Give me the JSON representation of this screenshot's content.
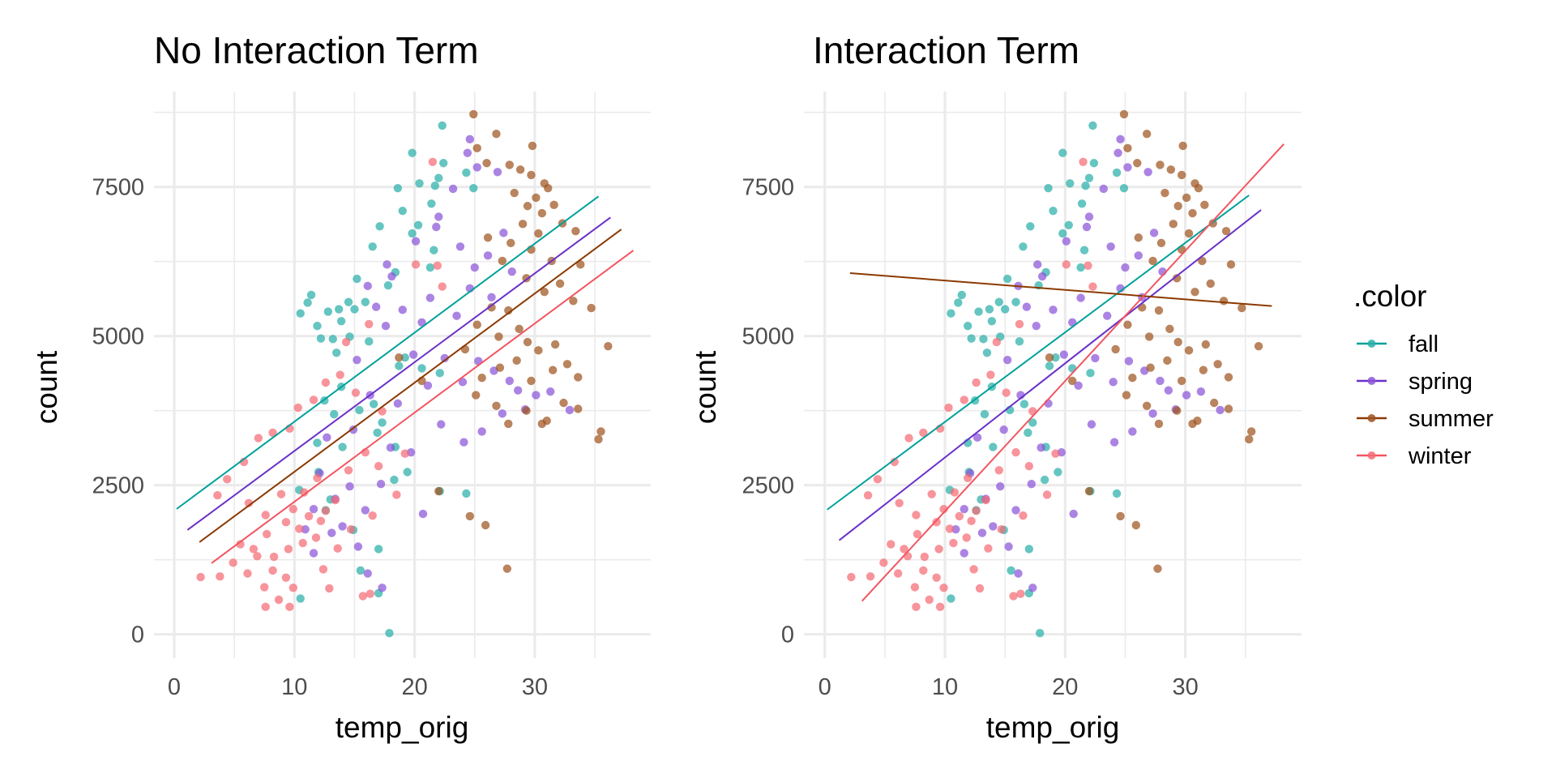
{
  "colors": {
    "fall": "#00A19A",
    "spring": "#6A30C8",
    "summer": "#8B3A00",
    "winter": "#F25560",
    "fall_point": "#2AAFA9",
    "spring_point": "#8A55D8",
    "summer_point": "#9E5420",
    "winter_point": "#F56B74"
  },
  "legend": {
    "title": ".color",
    "placement": "right",
    "items": [
      {
        "key": "fall",
        "label": "fall"
      },
      {
        "key": "spring",
        "label": "spring"
      },
      {
        "key": "summer",
        "label": "summer"
      },
      {
        "key": "winter",
        "label": "winter"
      }
    ]
  },
  "chart_data": [
    {
      "type": "scatter",
      "title": "No Interaction Term",
      "xlabel": "temp_orig",
      "ylabel": "count",
      "xlim": [
        -1.5,
        39.3
      ],
      "ylim": [
        -400,
        9100
      ],
      "xticks": [
        "0",
        "10",
        "20",
        "30"
      ],
      "xtick_values": [
        0,
        10,
        20,
        30
      ],
      "yticks": [
        "0",
        "2500",
        "5000",
        "7500"
      ],
      "ytick_values": [
        0,
        2500,
        5000,
        7500
      ],
      "grid": true,
      "fit_lines": [
        {
          "series": "fall",
          "x": [
            0.2,
            35.3
          ],
          "y": [
            2102,
            7342
          ]
        },
        {
          "series": "spring",
          "x": [
            1.1,
            36.3
          ],
          "y": [
            1749,
            6989
          ]
        },
        {
          "series": "summer",
          "x": [
            2.1,
            37.2
          ],
          "y": [
            1545,
            6789
          ]
        },
        {
          "series": "winter",
          "x": [
            3.1,
            38.2
          ],
          "y": [
            1192,
            6436
          ]
        }
      ]
    },
    {
      "type": "scatter",
      "title": "Interaction Term",
      "xlabel": "temp_orig",
      "ylabel": "count",
      "xlim": [
        -1.5,
        39.3
      ],
      "ylim": [
        -400,
        9100
      ],
      "xticks": [
        "0",
        "10",
        "20",
        "30"
      ],
      "xtick_values": [
        0,
        10,
        20,
        30
      ],
      "yticks": [
        "0",
        "2500",
        "5000",
        "7500"
      ],
      "ytick_values": [
        0,
        2500,
        5000,
        7500
      ],
      "grid": true,
      "fit_lines": [
        {
          "series": "fall",
          "x": [
            0.2,
            35.3
          ],
          "y": [
            2090,
            7360
          ]
        },
        {
          "series": "spring",
          "x": [
            1.2,
            36.3
          ],
          "y": [
            1576,
            7115
          ]
        },
        {
          "series": "summer",
          "x": [
            2.1,
            37.2
          ],
          "y": [
            6056,
            5503
          ]
        },
        {
          "series": "winter",
          "x": [
            3.1,
            38.2
          ],
          "y": [
            557,
            8220
          ]
        }
      ]
    }
  ],
  "points": {
    "fall": [
      [
        17.9,
        20
      ],
      [
        22.3,
        8530
      ],
      [
        19.8,
        8070
      ],
      [
        20.4,
        7560
      ],
      [
        21.7,
        7520
      ],
      [
        18.6,
        7480
      ],
      [
        19.0,
        7100
      ],
      [
        21.4,
        7220
      ],
      [
        22.0,
        7650
      ],
      [
        22.4,
        7900
      ],
      [
        24.3,
        7740
      ],
      [
        24.9,
        7480
      ],
      [
        16.5,
        6500
      ],
      [
        17.1,
        6840
      ],
      [
        19.8,
        6720
      ],
      [
        20.3,
        6860
      ],
      [
        21.6,
        6440
      ],
      [
        21.3,
        6150
      ],
      [
        18.4,
        6070
      ],
      [
        17.8,
        5850
      ],
      [
        15.2,
        5960
      ],
      [
        14.5,
        5570
      ],
      [
        13.9,
        5250
      ],
      [
        13.7,
        5450
      ],
      [
        12.8,
        5410
      ],
      [
        11.9,
        5170
      ],
      [
        11.1,
        5560
      ],
      [
        11.4,
        5690
      ],
      [
        10.5,
        5380
      ],
      [
        12.2,
        4960
      ],
      [
        13.2,
        4950
      ],
      [
        13.5,
        4720
      ],
      [
        15.0,
        5450
      ],
      [
        15.9,
        5570
      ],
      [
        14.6,
        4990
      ],
      [
        16.2,
        4910
      ],
      [
        18.7,
        4500
      ],
      [
        19.2,
        4640
      ],
      [
        20.6,
        4460
      ],
      [
        22.1,
        4380
      ],
      [
        12.5,
        3920
      ],
      [
        13.3,
        3690
      ],
      [
        15.4,
        3760
      ],
      [
        16.6,
        3860
      ],
      [
        17.3,
        3550
      ],
      [
        18.4,
        3140
      ],
      [
        19.4,
        2720
      ],
      [
        18.3,
        2590
      ],
      [
        16.9,
        3380
      ],
      [
        14.0,
        3140
      ],
      [
        12.0,
        2720
      ],
      [
        10.4,
        2420
      ],
      [
        12.6,
        2080
      ],
      [
        14.9,
        1750
      ],
      [
        17.0,
        1430
      ],
      [
        22.1,
        2400
      ],
      [
        24.3,
        2360
      ],
      [
        10.5,
        600
      ],
      [
        15.5,
        1070
      ],
      [
        17.0,
        690
      ],
      [
        13.0,
        2260
      ],
      [
        11.9,
        3210
      ],
      [
        13.9,
        4150
      ]
    ],
    "spring": [
      [
        24.6,
        8300
      ],
      [
        24.4,
        8070
      ],
      [
        23.2,
        7470
      ],
      [
        22.0,
        7000
      ],
      [
        20.1,
        6590
      ],
      [
        21.8,
        6830
      ],
      [
        23.8,
        6500
      ],
      [
        25.0,
        6150
      ],
      [
        26.1,
        6350
      ],
      [
        27.4,
        6730
      ],
      [
        28.1,
        6080
      ],
      [
        26.4,
        5650
      ],
      [
        24.6,
        5800
      ],
      [
        21.3,
        5640
      ],
      [
        20.6,
        5230
      ],
      [
        19.0,
        5440
      ],
      [
        18.1,
        6000
      ],
      [
        17.7,
        6200
      ],
      [
        16.1,
        5840
      ],
      [
        16.8,
        5490
      ],
      [
        17.6,
        5170
      ],
      [
        19.9,
        4690
      ],
      [
        21.1,
        4170
      ],
      [
        22.5,
        4630
      ],
      [
        24.0,
        4230
      ],
      [
        25.3,
        4580
      ],
      [
        26.6,
        4420
      ],
      [
        27.9,
        4250
      ],
      [
        28.6,
        4090
      ],
      [
        30.1,
        4010
      ],
      [
        31.3,
        4070
      ],
      [
        32.9,
        3760
      ],
      [
        29.2,
        3770
      ],
      [
        27.3,
        3700
      ],
      [
        25.6,
        3400
      ],
      [
        24.1,
        3220
      ],
      [
        22.2,
        3520
      ],
      [
        19.7,
        3050
      ],
      [
        18.0,
        3130
      ],
      [
        17.2,
        2520
      ],
      [
        15.9,
        2080
      ],
      [
        14.6,
        2480
      ],
      [
        13.4,
        2270
      ],
      [
        12.1,
        2700
      ],
      [
        11.6,
        2100
      ],
      [
        10.9,
        1760
      ],
      [
        13.1,
        1700
      ],
      [
        14.0,
        1810
      ],
      [
        15.3,
        1470
      ],
      [
        20.7,
        2020
      ],
      [
        17.3,
        780
      ],
      [
        16.1,
        1020
      ],
      [
        11.6,
        1360
      ],
      [
        12.7,
        3300
      ],
      [
        14.9,
        3430
      ],
      [
        16.3,
        4010
      ],
      [
        15.2,
        4600
      ],
      [
        18.6,
        3870
      ],
      [
        23.5,
        5340
      ],
      [
        25.2,
        7830
      ],
      [
        26.9,
        7750
      ]
    ],
    "summer": [
      [
        24.9,
        8720
      ],
      [
        26.8,
        8390
      ],
      [
        29.8,
        8190
      ],
      [
        25.2,
        8150
      ],
      [
        26.0,
        7900
      ],
      [
        27.9,
        7870
      ],
      [
        28.8,
        7790
      ],
      [
        29.7,
        7700
      ],
      [
        30.8,
        7560
      ],
      [
        31.1,
        7480
      ],
      [
        28.3,
        7400
      ],
      [
        29.4,
        7180
      ],
      [
        30.1,
        7320
      ],
      [
        30.6,
        7060
      ],
      [
        31.6,
        7200
      ],
      [
        32.3,
        6890
      ],
      [
        33.4,
        6760
      ],
      [
        29.0,
        6880
      ],
      [
        30.3,
        6720
      ],
      [
        28.0,
        6560
      ],
      [
        29.7,
        6450
      ],
      [
        31.4,
        6260
      ],
      [
        33.8,
        6200
      ],
      [
        26.1,
        6650
      ],
      [
        27.3,
        6260
      ],
      [
        29.3,
        5970
      ],
      [
        30.8,
        5740
      ],
      [
        32.1,
        5880
      ],
      [
        34.7,
        5470
      ],
      [
        33.2,
        5590
      ],
      [
        27.8,
        5430
      ],
      [
        26.4,
        5480
      ],
      [
        25.2,
        5190
      ],
      [
        27.0,
        4990
      ],
      [
        28.7,
        5120
      ],
      [
        29.4,
        4900
      ],
      [
        30.3,
        4760
      ],
      [
        31.7,
        4860
      ],
      [
        32.7,
        4530
      ],
      [
        33.6,
        4310
      ],
      [
        31.5,
        4430
      ],
      [
        29.7,
        4250
      ],
      [
        28.5,
        4590
      ],
      [
        27.1,
        4470
      ],
      [
        25.6,
        4300
      ],
      [
        24.2,
        4780
      ],
      [
        25.1,
        4010
      ],
      [
        26.8,
        3830
      ],
      [
        27.8,
        3530
      ],
      [
        29.3,
        3750
      ],
      [
        31.0,
        3580
      ],
      [
        32.4,
        3880
      ],
      [
        33.6,
        3780
      ],
      [
        35.5,
        3400
      ],
      [
        35.3,
        3270
      ],
      [
        36.1,
        4830
      ],
      [
        30.6,
        3530
      ],
      [
        22.0,
        2400
      ],
      [
        24.6,
        1980
      ],
      [
        25.9,
        1830
      ],
      [
        27.7,
        1100
      ],
      [
        18.7,
        4640
      ],
      [
        20.6,
        4250
      ]
    ],
    "winter": [
      [
        21.5,
        7920
      ],
      [
        20.1,
        6200
      ],
      [
        21.9,
        6180
      ],
      [
        16.2,
        5200
      ],
      [
        14.3,
        4900
      ],
      [
        12.6,
        4220
      ],
      [
        13.8,
        4350
      ],
      [
        11.6,
        3930
      ],
      [
        10.3,
        3800
      ],
      [
        9.6,
        3450
      ],
      [
        8.2,
        3380
      ],
      [
        7.0,
        3290
      ],
      [
        5.8,
        2890
      ],
      [
        4.4,
        2600
      ],
      [
        3.6,
        2330
      ],
      [
        6.2,
        2200
      ],
      [
        7.6,
        2000
      ],
      [
        8.9,
        2350
      ],
      [
        9.9,
        2100
      ],
      [
        10.8,
        2380
      ],
      [
        11.9,
        2620
      ],
      [
        12.6,
        2070
      ],
      [
        13.4,
        2250
      ],
      [
        14.5,
        2750
      ],
      [
        15.9,
        3050
      ],
      [
        17.0,
        2820
      ],
      [
        9.3,
        1880
      ],
      [
        10.4,
        1770
      ],
      [
        11.2,
        1980
      ],
      [
        11.8,
        1620
      ],
      [
        12.2,
        1900
      ],
      [
        10.7,
        1530
      ],
      [
        9.5,
        1430
      ],
      [
        8.3,
        1300
      ],
      [
        7.7,
        1680
      ],
      [
        6.6,
        1430
      ],
      [
        5.5,
        1510
      ],
      [
        4.9,
        1200
      ],
      [
        6.1,
        1020
      ],
      [
        6.9,
        1310
      ],
      [
        7.5,
        790
      ],
      [
        8.2,
        1070
      ],
      [
        9.3,
        950
      ],
      [
        9.9,
        780
      ],
      [
        12.4,
        1090
      ],
      [
        12.9,
        770
      ],
      [
        13.6,
        1440
      ],
      [
        14.7,
        1760
      ],
      [
        16.5,
        1990
      ],
      [
        15.7,
        640
      ],
      [
        16.3,
        680
      ],
      [
        2.2,
        960
      ],
      [
        3.8,
        970
      ],
      [
        7.6,
        460
      ],
      [
        9.6,
        460
      ],
      [
        8.7,
        580
      ],
      [
        18.5,
        2340
      ],
      [
        19.2,
        3030
      ],
      [
        17.3,
        3740
      ],
      [
        15.1,
        4050
      ],
      [
        22.3,
        5830
      ]
    ]
  }
}
